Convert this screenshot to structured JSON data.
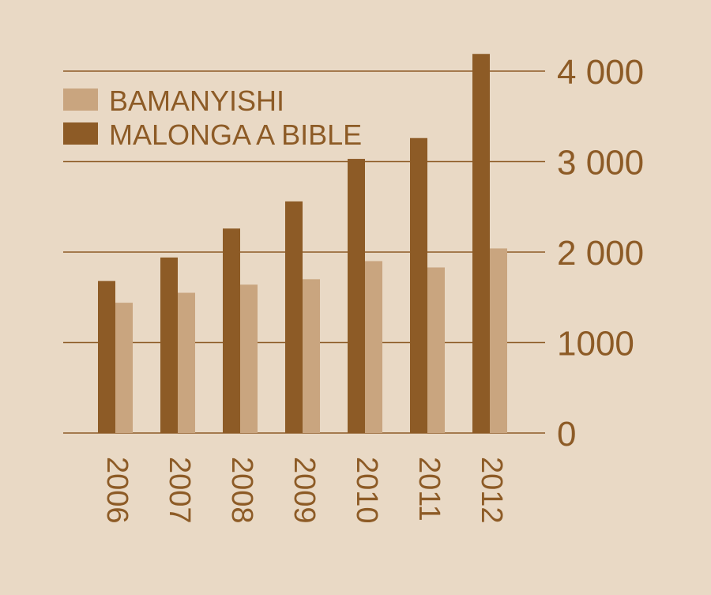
{
  "chart_data": {
    "type": "bar",
    "title": "",
    "xlabel": "",
    "ylabel": "",
    "categories": [
      "2006",
      "2007",
      "2008",
      "2009",
      "2010",
      "2011",
      "2012"
    ],
    "series": [
      {
        "name": "MALONGA A BIBLE",
        "color": "#8d5b26",
        "values": [
          1680,
          1940,
          2260,
          2560,
          3030,
          3260,
          4190
        ]
      },
      {
        "name": "BAMANYISHI",
        "color": "#c9a57f",
        "values": [
          1440,
          1550,
          1640,
          1700,
          1900,
          1830,
          2040
        ]
      }
    ],
    "legend_order": [
      1,
      0
    ],
    "legend_placement": "top-left",
    "ylim": [
      0,
      4000
    ],
    "yticks": [
      0,
      1000,
      2000,
      3000,
      4000
    ],
    "ytick_labels": [
      "0",
      "1000",
      "2 000",
      "3 000",
      "4 000"
    ],
    "y_axis_side": "right",
    "grid": true,
    "colors": {
      "background": "#e9d9c5",
      "text": "#8d5b26",
      "grid": "#8d5b26"
    }
  }
}
